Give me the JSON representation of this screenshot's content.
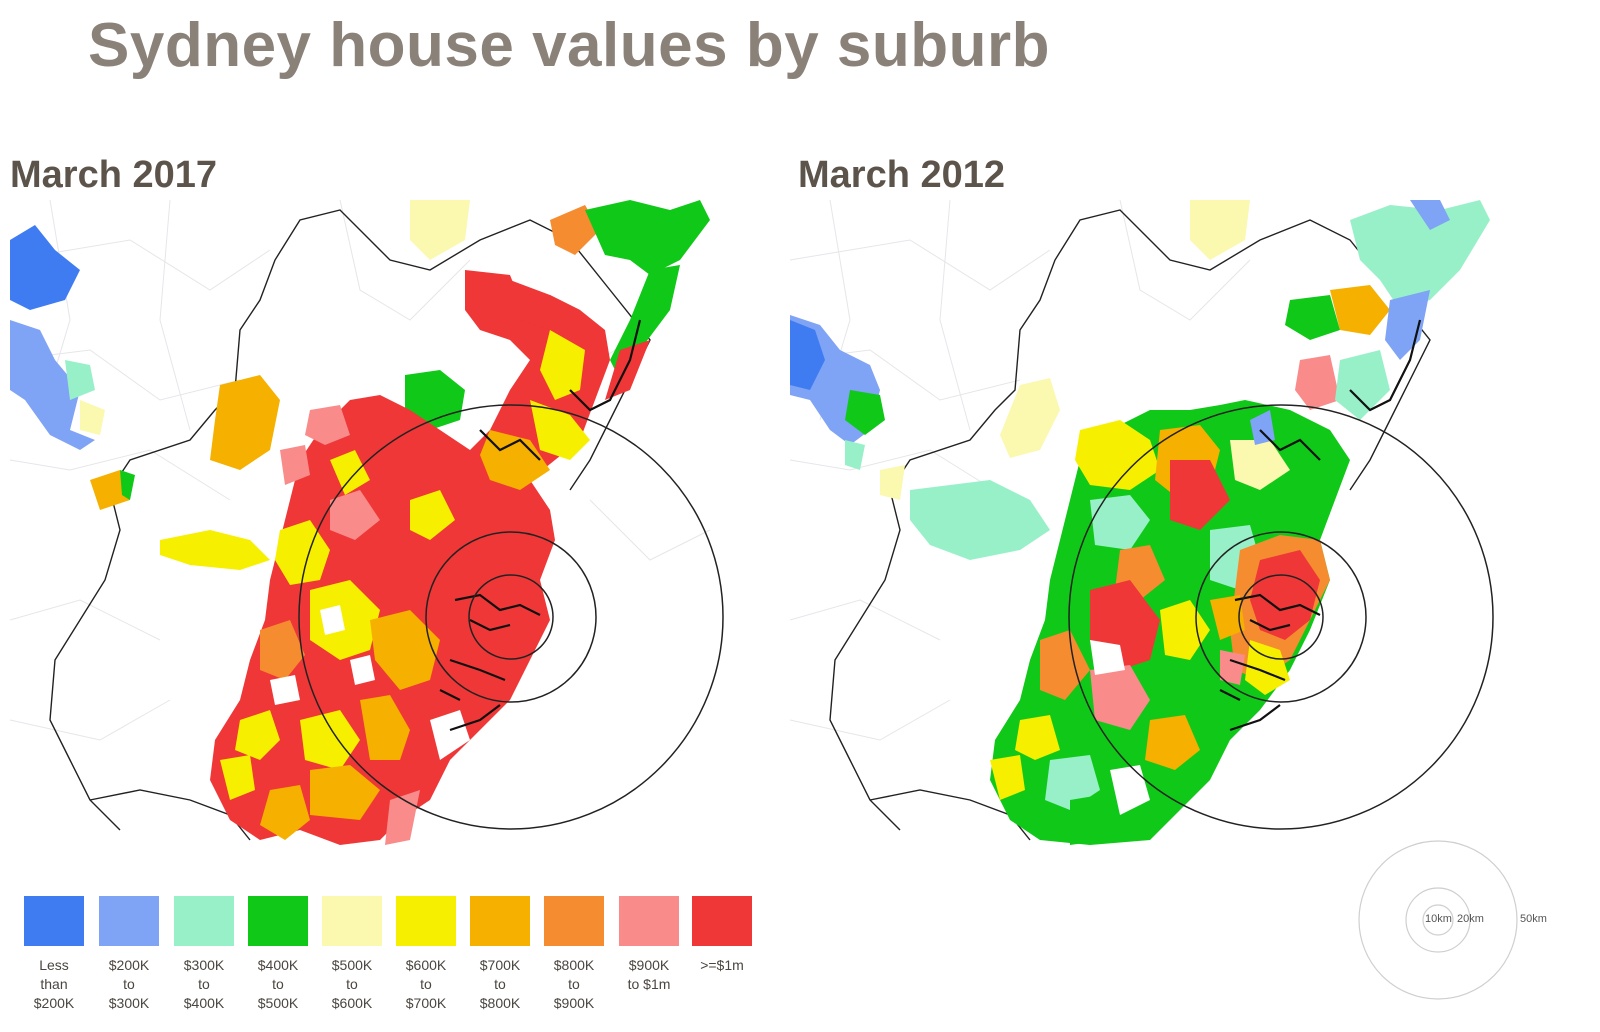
{
  "title": "Sydney house values by suburb",
  "panels": [
    {
      "label": "March 2017"
    },
    {
      "label": "March 2012"
    }
  ],
  "legend": [
    {
      "label": "Less\nthan\n$200K",
      "color": "#3f7cf2"
    },
    {
      "label": "$200K\nto\n$300K",
      "color": "#7fa3f5"
    },
    {
      "label": "$300K\nto\n$400K",
      "color": "#98f0c8"
    },
    {
      "label": "$400K\nto\n$500K",
      "color": "#10c818"
    },
    {
      "label": "$500K\nto\n$600K",
      "color": "#fbf8b0"
    },
    {
      "label": "$600K\nto\n$700K",
      "color": "#f6f000"
    },
    {
      "label": "$700K\nto\n$800K",
      "color": "#f5b000"
    },
    {
      "label": "$800K\nto\n$900K",
      "color": "#f68c30"
    },
    {
      "label": "$900K\nto $1m",
      "color": "#f98b8b"
    },
    {
      "label": ">=$1m",
      "color": "#ef3737"
    }
  ],
  "scale": {
    "labels": [
      "10km",
      "20km",
      "50km"
    ]
  }
}
